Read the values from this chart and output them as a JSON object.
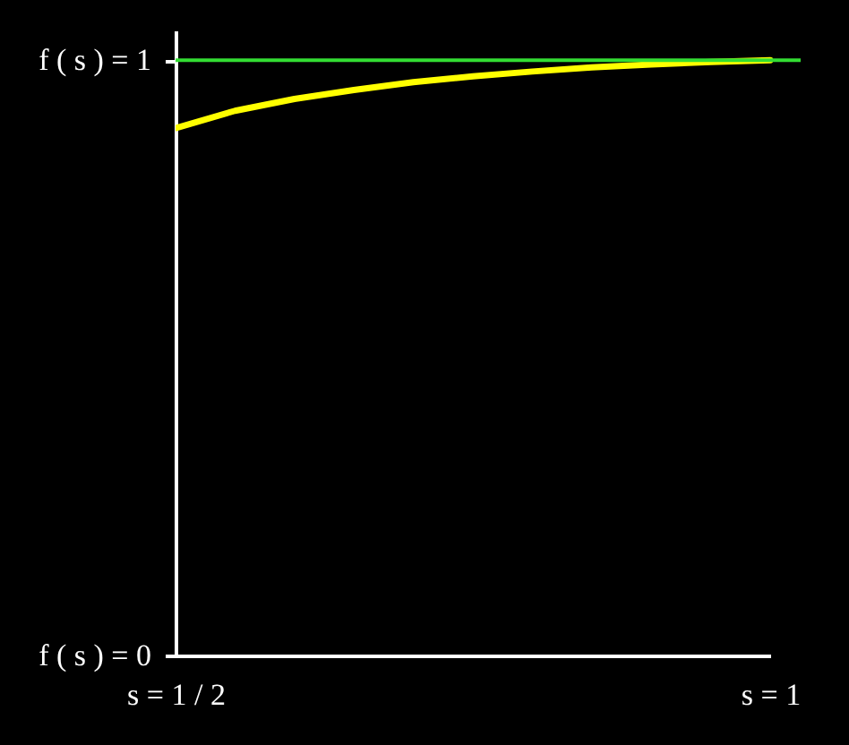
{
  "chart_data": {
    "type": "line",
    "categories": [
      "s = 1 / 2",
      null,
      null,
      null,
      null,
      null,
      null,
      null,
      null,
      null,
      "s = 1"
    ],
    "series": [
      {
        "color": "#ffff00",
        "values": [
          0.886,
          0.915,
          0.935,
          0.95,
          0.963,
          0.973,
          0.981,
          0.988,
          0.993,
          0.997,
          1.0
        ]
      }
    ],
    "ylim": [
      0,
      1.05
    ],
    "yticks": [
      {
        "value": 0,
        "label": "f ( s ) = 0"
      },
      {
        "value": 1,
        "label": "f ( s ) = 1"
      }
    ],
    "ref_lines": [
      {
        "axis": "y",
        "value": 1,
        "color": "#33dd33"
      }
    ]
  }
}
